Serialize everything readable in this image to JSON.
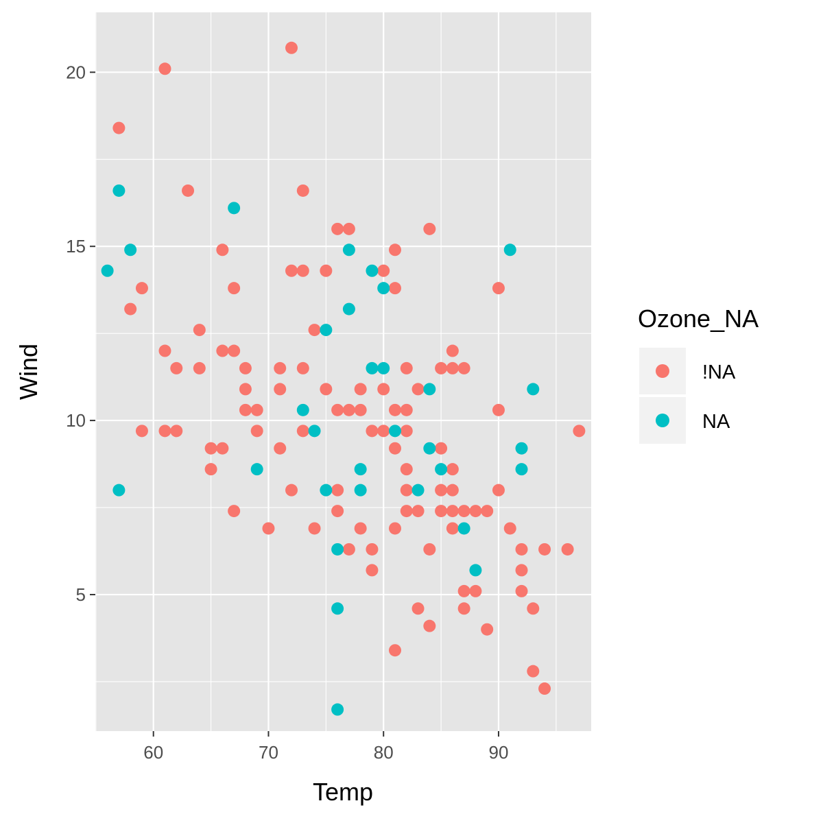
{
  "chart_data": {
    "type": "scatter",
    "title": "",
    "xlabel": "Temp",
    "ylabel": "Wind",
    "xlim": [
      54.95,
      98.05
    ],
    "ylim": [
      1.08,
      21.72
    ],
    "x_ticks": [
      60,
      70,
      80,
      90
    ],
    "y_ticks": [
      5,
      10,
      15,
      20
    ],
    "x_tick_labels": [
      "60",
      "70",
      "80",
      "90"
    ],
    "y_tick_labels": [
      "5",
      "10",
      "15",
      "20"
    ],
    "grid": true,
    "panel_background": "#e5e5e5",
    "grid_color": "#ffffff",
    "legend": {
      "title": "Ozone_NA",
      "placement": "right",
      "entries": [
        "!NA",
        "NA"
      ]
    },
    "series": [
      {
        "name": "!NA",
        "color": "#f8766d",
        "points": [
          [
            72,
            20.7
          ],
          [
            61,
            20.1
          ],
          [
            57,
            18.4
          ],
          [
            63,
            16.6
          ],
          [
            73,
            16.6
          ],
          [
            76,
            15.5
          ],
          [
            77,
            15.5
          ],
          [
            84,
            15.5
          ],
          [
            66,
            14.9
          ],
          [
            81,
            14.9
          ],
          [
            72,
            14.3
          ],
          [
            73,
            14.3
          ],
          [
            75,
            14.3
          ],
          [
            80,
            14.3
          ],
          [
            59,
            13.8
          ],
          [
            67,
            13.8
          ],
          [
            81,
            13.8
          ],
          [
            90,
            13.8
          ],
          [
            58,
            13.2
          ],
          [
            64,
            12.6
          ],
          [
            74,
            12.6
          ],
          [
            61,
            12.0
          ],
          [
            66,
            12.0
          ],
          [
            67,
            12.0
          ],
          [
            86,
            12.0
          ],
          [
            62,
            11.5
          ],
          [
            64,
            11.5
          ],
          [
            68,
            11.5
          ],
          [
            71,
            11.5
          ],
          [
            73,
            11.5
          ],
          [
            82,
            11.5
          ],
          [
            85,
            11.5
          ],
          [
            86,
            11.5
          ],
          [
            87,
            11.5
          ],
          [
            68,
            10.9
          ],
          [
            71,
            10.9
          ],
          [
            75,
            10.9
          ],
          [
            78,
            10.9
          ],
          [
            80,
            10.9
          ],
          [
            83,
            10.9
          ],
          [
            68,
            10.3
          ],
          [
            69,
            10.3
          ],
          [
            76,
            10.3
          ],
          [
            77,
            10.3
          ],
          [
            78,
            10.3
          ],
          [
            81,
            10.3
          ],
          [
            82,
            10.3
          ],
          [
            90,
            10.3
          ],
          [
            59,
            9.7
          ],
          [
            61,
            9.7
          ],
          [
            62,
            9.7
          ],
          [
            69,
            9.7
          ],
          [
            73,
            9.7
          ],
          [
            79,
            9.7
          ],
          [
            80,
            9.7
          ],
          [
            82,
            9.7
          ],
          [
            97,
            9.7
          ],
          [
            65,
            9.2
          ],
          [
            66,
            9.2
          ],
          [
            71,
            9.2
          ],
          [
            81,
            9.2
          ],
          [
            85,
            9.2
          ],
          [
            65,
            8.6
          ],
          [
            82,
            8.6
          ],
          [
            86,
            8.6
          ],
          [
            72,
            8.0
          ],
          [
            76,
            8.0
          ],
          [
            82,
            8.0
          ],
          [
            85,
            8.0
          ],
          [
            86,
            8.0
          ],
          [
            90,
            8.0
          ],
          [
            67,
            7.4
          ],
          [
            76,
            7.4
          ],
          [
            82,
            7.4
          ],
          [
            83,
            7.4
          ],
          [
            85,
            7.4
          ],
          [
            86,
            7.4
          ],
          [
            87,
            7.4
          ],
          [
            88,
            7.4
          ],
          [
            89,
            7.4
          ],
          [
            70,
            6.9
          ],
          [
            74,
            6.9
          ],
          [
            78,
            6.9
          ],
          [
            81,
            6.9
          ],
          [
            86,
            6.9
          ],
          [
            91,
            6.9
          ],
          [
            77,
            6.3
          ],
          [
            79,
            6.3
          ],
          [
            84,
            6.3
          ],
          [
            92,
            6.3
          ],
          [
            94,
            6.3
          ],
          [
            96,
            6.3
          ],
          [
            79,
            5.7
          ],
          [
            92,
            5.7
          ],
          [
            87,
            5.1
          ],
          [
            88,
            5.1
          ],
          [
            92,
            5.1
          ],
          [
            83,
            4.6
          ],
          [
            87,
            4.6
          ],
          [
            93,
            4.6
          ],
          [
            84,
            4.1
          ],
          [
            89,
            4.0
          ],
          [
            81,
            3.4
          ],
          [
            93,
            2.8
          ],
          [
            94,
            2.3
          ]
        ]
      },
      {
        "name": "NA",
        "color": "#00bfc4",
        "points": [
          [
            57,
            16.6
          ],
          [
            67,
            16.1
          ],
          [
            58,
            14.9
          ],
          [
            77,
            14.9
          ],
          [
            91,
            14.9
          ],
          [
            56,
            14.3
          ],
          [
            79,
            14.3
          ],
          [
            80,
            13.8
          ],
          [
            77,
            13.2
          ],
          [
            75,
            12.6
          ],
          [
            79,
            11.5
          ],
          [
            80,
            11.5
          ],
          [
            84,
            10.9
          ],
          [
            93,
            10.9
          ],
          [
            73,
            10.3
          ],
          [
            74,
            9.7
          ],
          [
            81,
            9.7
          ],
          [
            84,
            9.2
          ],
          [
            92,
            9.2
          ],
          [
            69,
            8.6
          ],
          [
            78,
            8.6
          ],
          [
            85,
            8.6
          ],
          [
            92,
            8.6
          ],
          [
            57,
            8.0
          ],
          [
            75,
            8.0
          ],
          [
            78,
            8.0
          ],
          [
            83,
            8.0
          ],
          [
            87,
            6.9
          ],
          [
            76,
            6.3
          ],
          [
            88,
            5.7
          ],
          [
            76,
            4.6
          ],
          [
            76,
            1.7
          ]
        ]
      }
    ]
  }
}
